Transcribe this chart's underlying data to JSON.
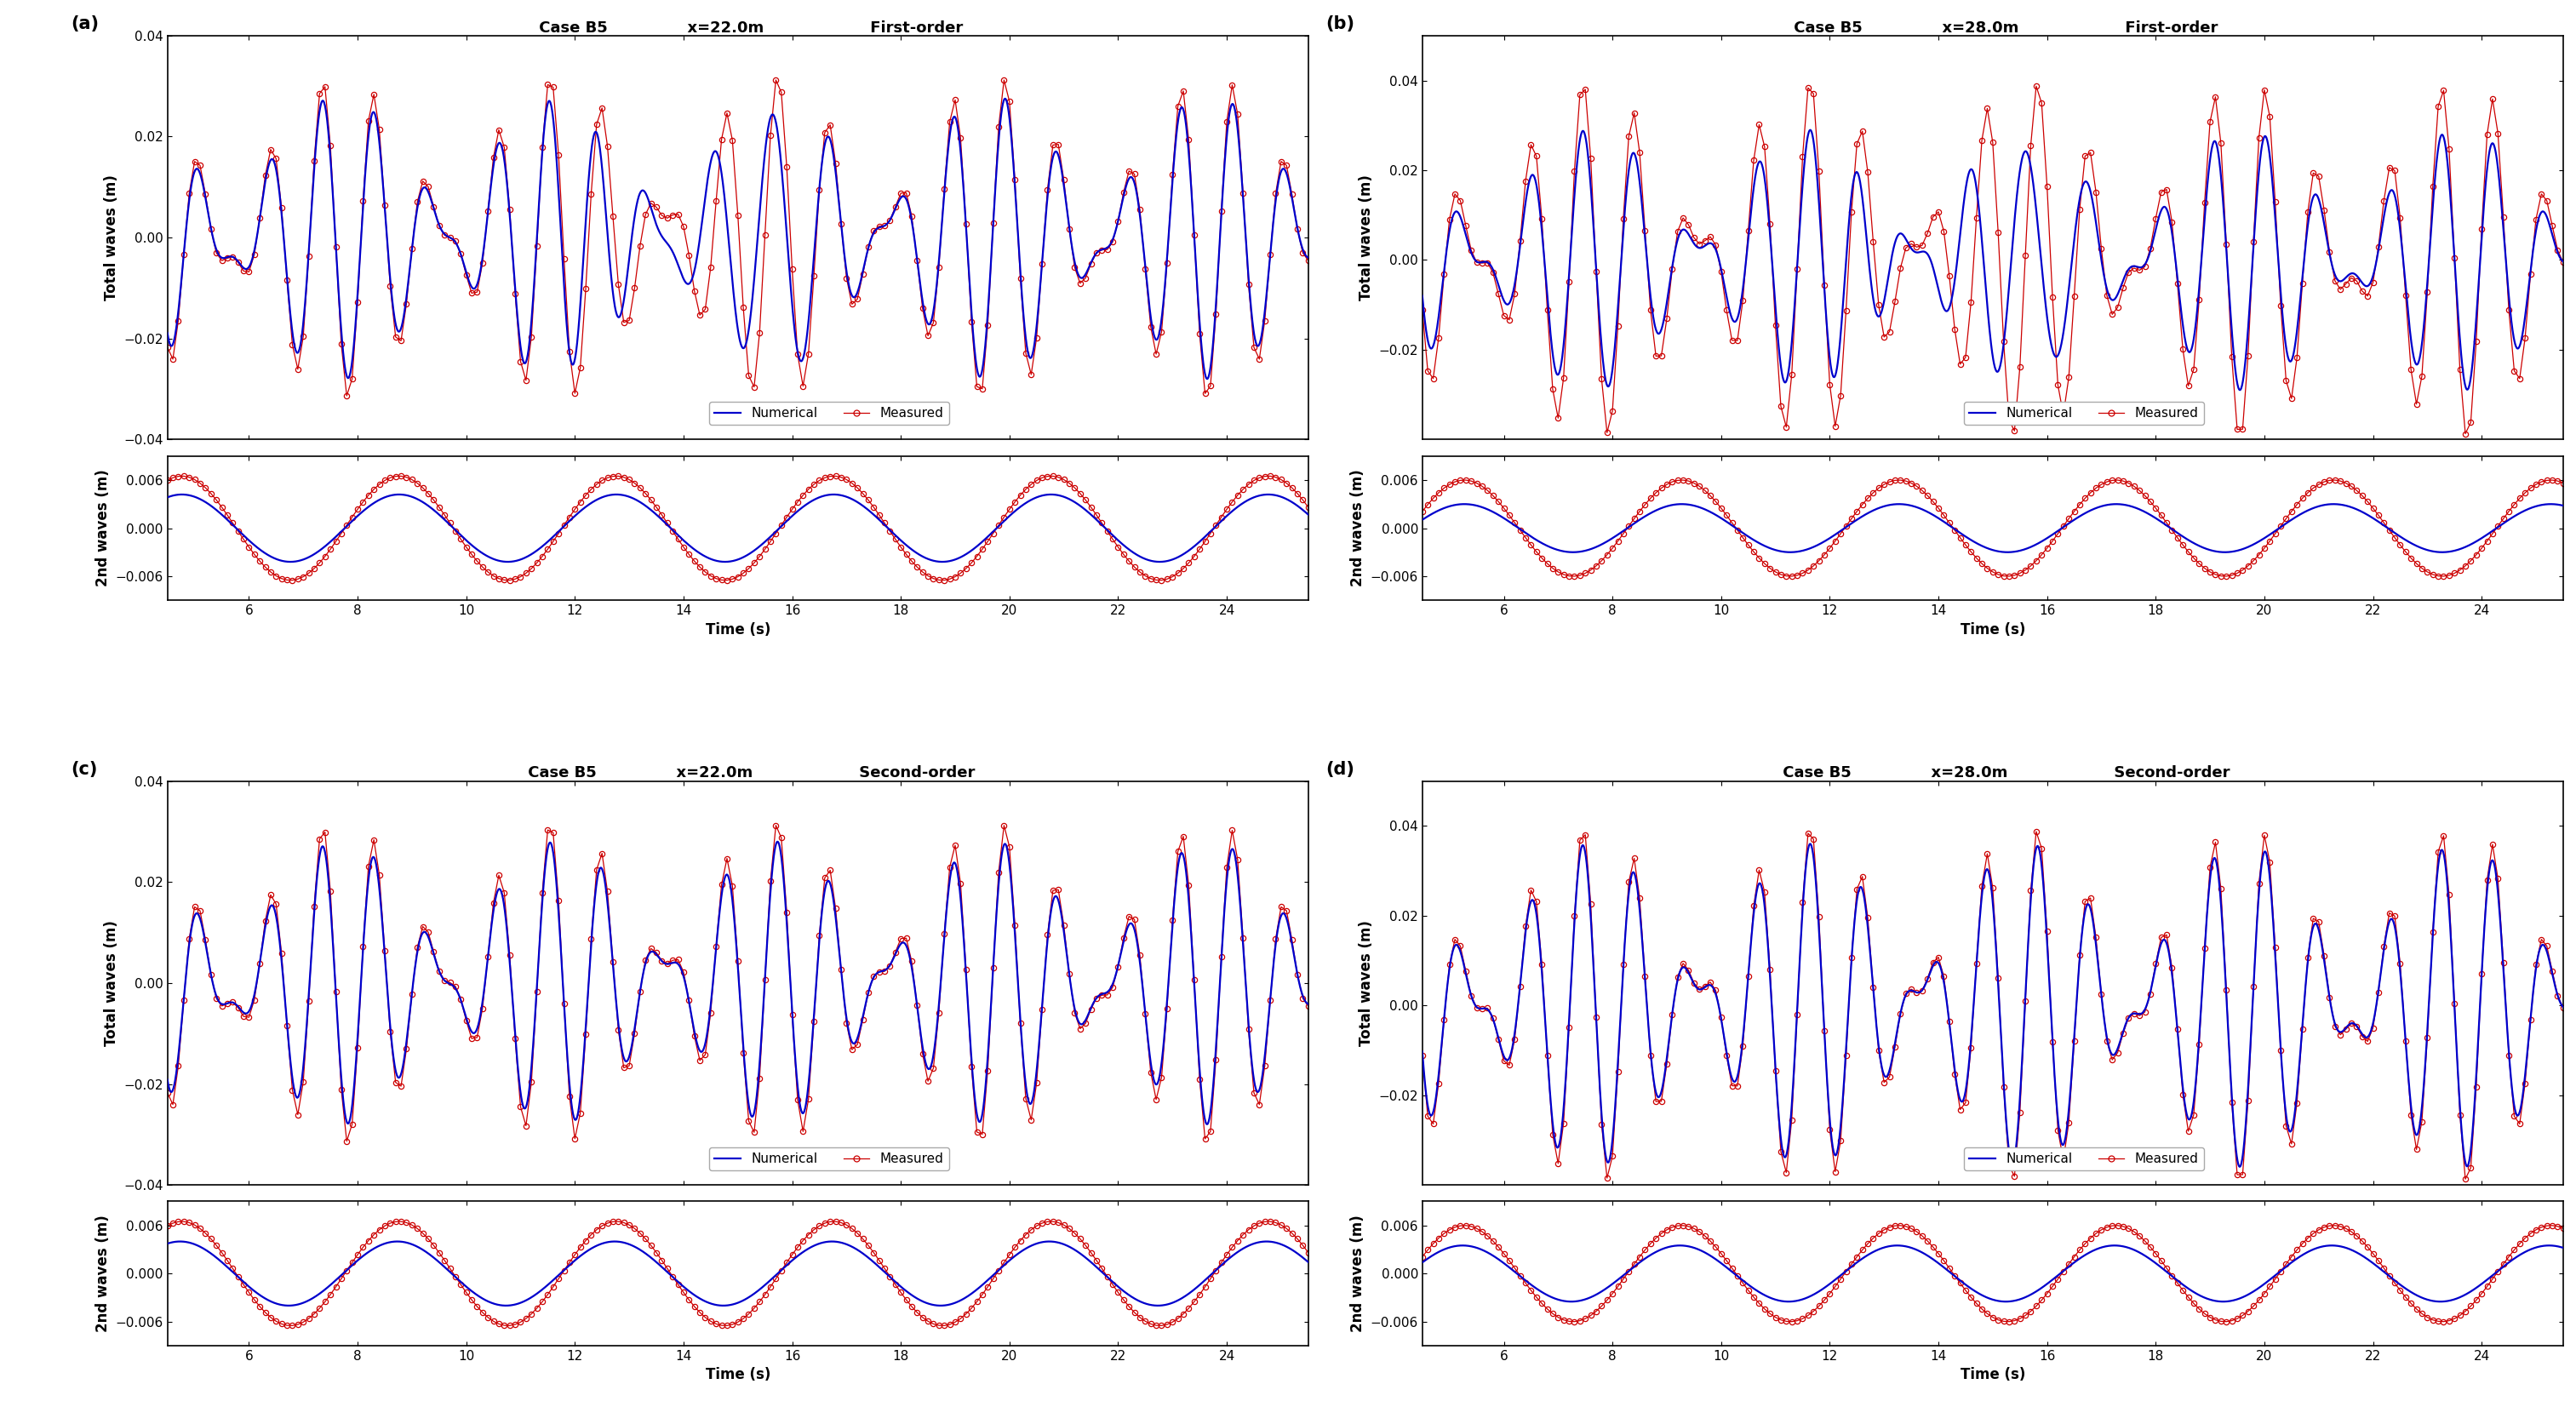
{
  "panels": [
    {
      "label": "(a)",
      "case": "Case B5",
      "x_pos": "x=22.0m",
      "order": "First-order",
      "total_ylim": [
        -0.04,
        0.04
      ],
      "second_ylim": [
        -0.009,
        0.009
      ],
      "total_yticks": [
        -0.04,
        -0.02,
        0.0,
        0.02,
        0.04
      ],
      "second_yticks": [
        -0.006,
        0.0,
        0.006
      ]
    },
    {
      "label": "(b)",
      "case": "Case B5",
      "x_pos": "x=28.0m",
      "order": "First-order",
      "total_ylim": [
        -0.04,
        0.05
      ],
      "second_ylim": [
        -0.009,
        0.009
      ],
      "total_yticks": [
        -0.02,
        0.0,
        0.02,
        0.04
      ],
      "second_yticks": [
        -0.006,
        0.0,
        0.006
      ]
    },
    {
      "label": "(c)",
      "case": "Case B5",
      "x_pos": "x=22.0m",
      "order": "Second-order",
      "total_ylim": [
        -0.04,
        0.04
      ],
      "second_ylim": [
        -0.009,
        0.009
      ],
      "total_yticks": [
        -0.04,
        -0.02,
        0.0,
        0.02,
        0.04
      ],
      "second_yticks": [
        -0.006,
        0.0,
        0.006
      ]
    },
    {
      "label": "(d)",
      "case": "Case B5",
      "x_pos": "x=28.0m",
      "order": "Second-order",
      "total_ylim": [
        -0.04,
        0.05
      ],
      "second_ylim": [
        -0.009,
        0.009
      ],
      "total_yticks": [
        -0.02,
        0.0,
        0.02,
        0.04
      ],
      "second_yticks": [
        -0.006,
        0.0,
        0.006
      ]
    }
  ],
  "time_range": [
    4.5,
    25.5
  ],
  "xticks": [
    6,
    8,
    10,
    12,
    14,
    16,
    18,
    20,
    22,
    24
  ],
  "numerical_color": "#0000CC",
  "measured_color": "#CC0000",
  "total_ylabel": "Total waves (m)",
  "second_ylabel": "2nd waves (m)",
  "xlabel": "Time (s)",
  "title_fontsize": 13,
  "label_fontsize": 12,
  "tick_fontsize": 11,
  "legend_fontsize": 11
}
